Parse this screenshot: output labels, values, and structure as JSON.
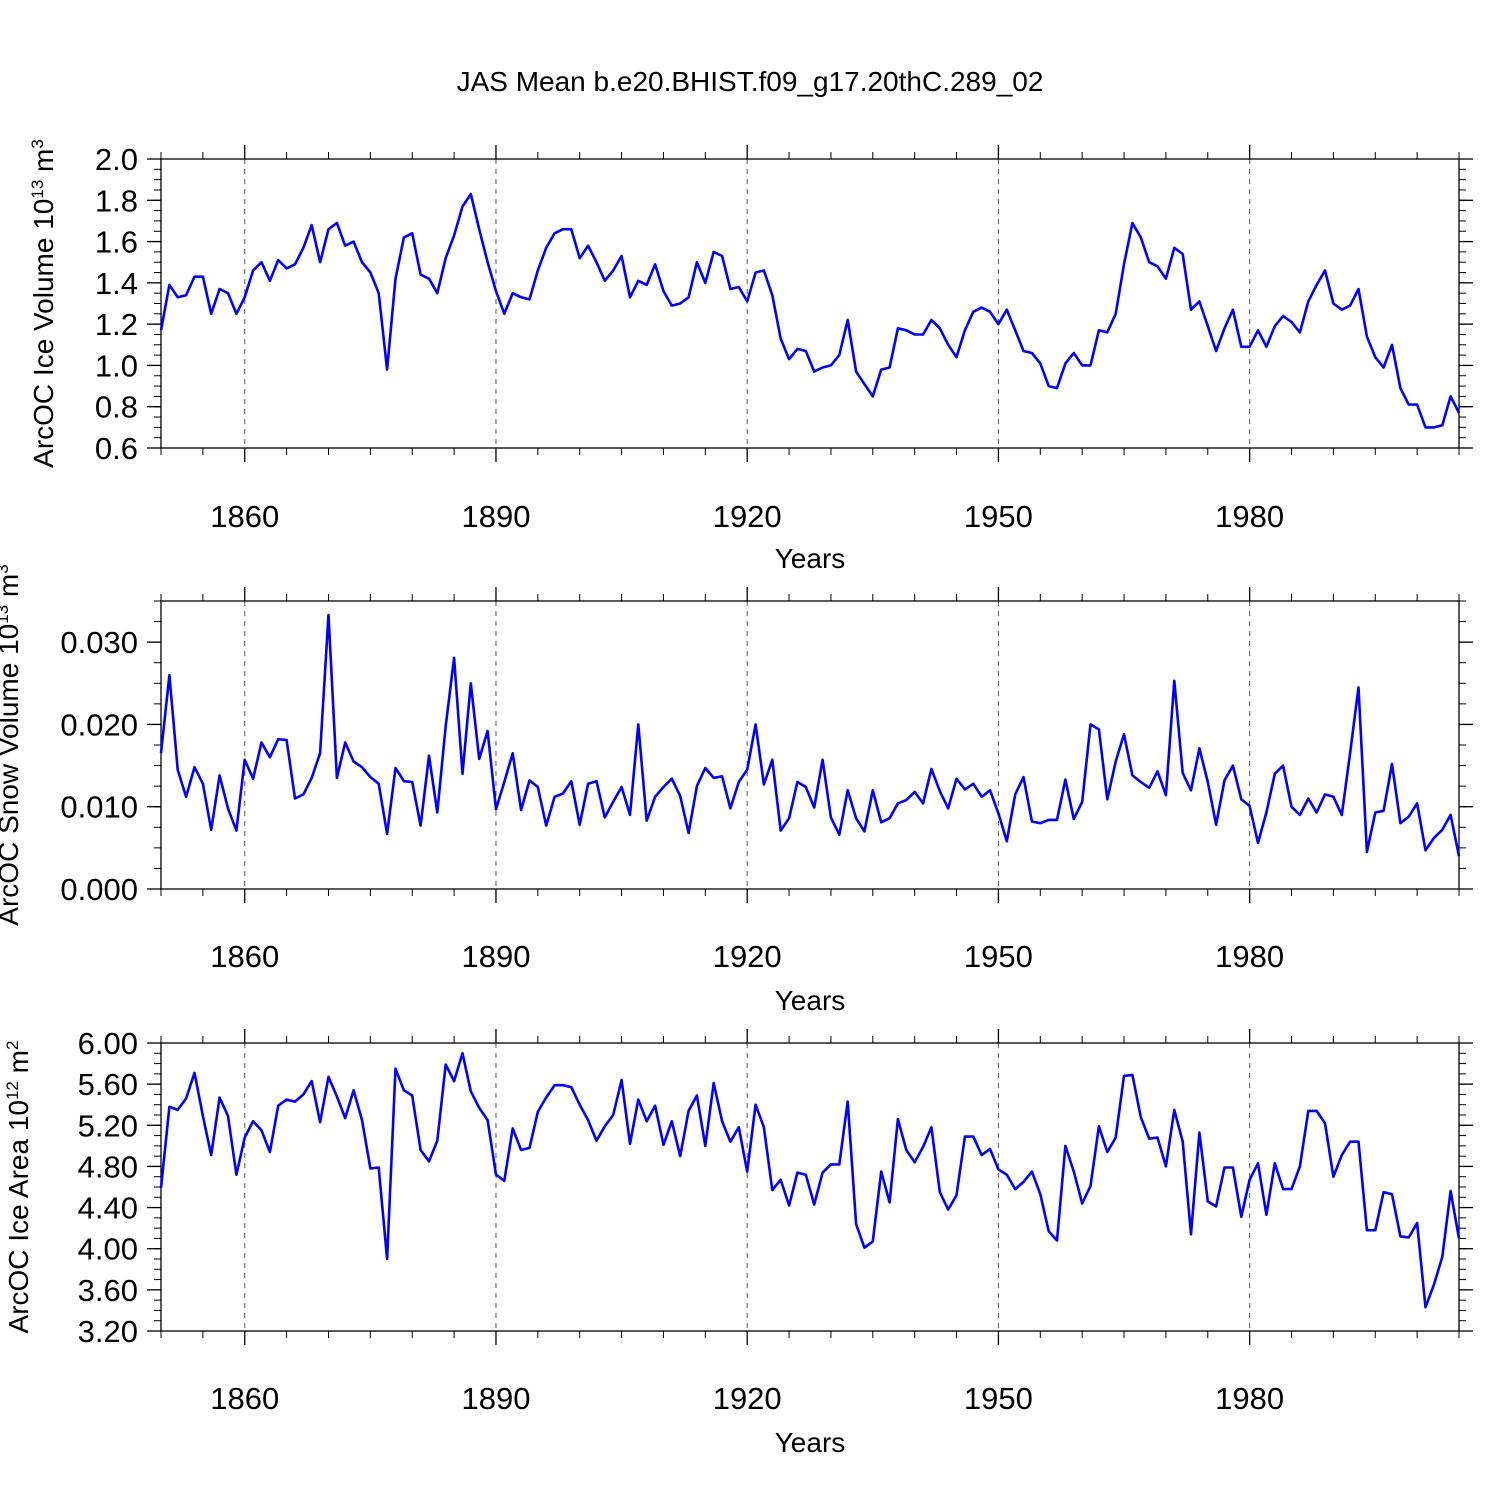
{
  "title": "JAS Mean b.e20.BHIST.f09_g17.20thC.289_02",
  "colors": {
    "line": "#0000ff",
    "axis": "#000000",
    "grid": "#555555"
  },
  "chart_data": [
    {
      "type": "line",
      "xlabel": "Years",
      "ylabel": {
        "base": "ArcOC Ice Volume 10",
        "exp": "13",
        "unit": " m",
        "unit_exp": "3"
      },
      "xlim": [
        1850,
        2005
      ],
      "ylim": [
        0.6,
        2.0
      ],
      "xticks": [
        1860,
        1890,
        1920,
        1950,
        1980
      ],
      "xtick_labels": [
        "1860",
        "1890",
        "1920",
        "1950",
        "1980"
      ],
      "yticks": [
        0.6,
        0.8,
        1.0,
        1.2,
        1.4,
        1.6,
        1.8,
        2.0
      ],
      "ytick_labels": [
        "0.6",
        "0.8",
        "1.0",
        "1.2",
        "1.4",
        "1.6",
        "1.8",
        "2.0"
      ],
      "yminor_step": 0.05,
      "x_start": 1850,
      "values": [
        1.17,
        1.39,
        1.33,
        1.34,
        1.43,
        1.43,
        1.25,
        1.37,
        1.35,
        1.25,
        1.33,
        1.46,
        1.5,
        1.41,
        1.51,
        1.47,
        1.49,
        1.57,
        1.68,
        1.5,
        1.66,
        1.69,
        1.58,
        1.6,
        1.5,
        1.45,
        1.35,
        0.98,
        1.42,
        1.62,
        1.64,
        1.44,
        1.42,
        1.35,
        1.52,
        1.63,
        1.77,
        1.83,
        1.66,
        1.5,
        1.36,
        1.25,
        1.35,
        1.33,
        1.32,
        1.46,
        1.57,
        1.64,
        1.66,
        1.66,
        1.52,
        1.58,
        1.5,
        1.41,
        1.46,
        1.53,
        1.33,
        1.41,
        1.39,
        1.49,
        1.36,
        1.29,
        1.3,
        1.33,
        1.5,
        1.4,
        1.55,
        1.53,
        1.37,
        1.38,
        1.31,
        1.45,
        1.46,
        1.34,
        1.13,
        1.03,
        1.08,
        1.07,
        0.97,
        0.99,
        1.0,
        1.05,
        1.22,
        0.97,
        0.91,
        0.85,
        0.98,
        0.99,
        1.18,
        1.17,
        1.15,
        1.15,
        1.22,
        1.18,
        1.1,
        1.04,
        1.17,
        1.26,
        1.28,
        1.26,
        1.2,
        1.27,
        1.17,
        1.07,
        1.06,
        1.01,
        0.9,
        0.89,
        1.01,
        1.06,
        1.0,
        1.0,
        1.17,
        1.16,
        1.25,
        1.49,
        1.69,
        1.62,
        1.5,
        1.48,
        1.42,
        1.57,
        1.54,
        1.27,
        1.31,
        1.19,
        1.07,
        1.18,
        1.27,
        1.09,
        1.09,
        1.17,
        1.09,
        1.19,
        1.24,
        1.21,
        1.16,
        1.31,
        1.39,
        1.46,
        1.3,
        1.27,
        1.29,
        1.37,
        1.14,
        1.04,
        0.99,
        1.1,
        0.89,
        0.81,
        0.81,
        0.7,
        0.7,
        0.71,
        0.85,
        0.77
      ]
    },
    {
      "type": "line",
      "xlabel": "Years",
      "ylabel": {
        "base": "ArcOC Snow Volume 10",
        "exp": "13",
        "unit": " m",
        "unit_exp": "3"
      },
      "xlim": [
        1850,
        2005
      ],
      "ylim": [
        0.0,
        0.035
      ],
      "xticks": [
        1860,
        1890,
        1920,
        1950,
        1980
      ],
      "xtick_labels": [
        "1860",
        "1890",
        "1920",
        "1950",
        "1980"
      ],
      "yticks": [
        0.0,
        0.01,
        0.02,
        0.03
      ],
      "ytick_labels": [
        "0.000",
        "0.010",
        "0.020",
        "0.030"
      ],
      "yminor_step": 0.0025,
      "x_start": 1850,
      "values": [
        0.0165,
        0.026,
        0.0145,
        0.0112,
        0.0148,
        0.0128,
        0.0072,
        0.0138,
        0.0098,
        0.0071,
        0.0157,
        0.0134,
        0.0178,
        0.016,
        0.0182,
        0.0181,
        0.011,
        0.0115,
        0.0135,
        0.0165,
        0.0333,
        0.0135,
        0.0178,
        0.0155,
        0.0148,
        0.0136,
        0.0128,
        0.0067,
        0.0147,
        0.0131,
        0.013,
        0.0077,
        0.0162,
        0.0093,
        0.0198,
        0.0281,
        0.014,
        0.025,
        0.0158,
        0.0192,
        0.0097,
        0.013,
        0.0165,
        0.0096,
        0.0132,
        0.0124,
        0.0077,
        0.0112,
        0.0116,
        0.0131,
        0.0078,
        0.0128,
        0.0131,
        0.0087,
        0.0106,
        0.0124,
        0.009,
        0.02,
        0.0083,
        0.0112,
        0.0124,
        0.0134,
        0.0113,
        0.0068,
        0.0125,
        0.0147,
        0.0135,
        0.0137,
        0.0098,
        0.013,
        0.0145,
        0.02,
        0.0127,
        0.0157,
        0.0071,
        0.0086,
        0.013,
        0.0124,
        0.0099,
        0.0157,
        0.0087,
        0.0066,
        0.012,
        0.0086,
        0.007,
        0.012,
        0.0081,
        0.0086,
        0.0104,
        0.0108,
        0.0118,
        0.0104,
        0.0146,
        0.0119,
        0.0098,
        0.0134,
        0.0121,
        0.0128,
        0.0112,
        0.012,
        0.0092,
        0.0058,
        0.0115,
        0.0136,
        0.0082,
        0.008,
        0.0084,
        0.0084,
        0.0133,
        0.0085,
        0.0106,
        0.02,
        0.0194,
        0.0109,
        0.0155,
        0.0188,
        0.0138,
        0.013,
        0.0123,
        0.0143,
        0.0114,
        0.0253,
        0.0141,
        0.012,
        0.0171,
        0.013,
        0.0078,
        0.0132,
        0.015,
        0.0109,
        0.0101,
        0.0056,
        0.0093,
        0.014,
        0.015,
        0.01,
        0.009,
        0.011,
        0.0093,
        0.0115,
        0.0112,
        0.009,
        0.0165,
        0.0245,
        0.0045,
        0.0093,
        0.0095,
        0.0152,
        0.008,
        0.0088,
        0.0104,
        0.0047,
        0.0062,
        0.0072,
        0.009,
        0.004
      ]
    },
    {
      "type": "line",
      "xlabel": "Years",
      "ylabel": {
        "base": "ArcOC Ice Area 10",
        "exp": "12",
        "unit": " m",
        "unit_exp": "2"
      },
      "xlim": [
        1850,
        2005
      ],
      "ylim": [
        3.2,
        6.0
      ],
      "xticks": [
        1860,
        1890,
        1920,
        1950,
        1980
      ],
      "xtick_labels": [
        "1860",
        "1890",
        "1920",
        "1950",
        "1980"
      ],
      "yticks": [
        3.2,
        3.6,
        4.0,
        4.4,
        4.8,
        5.2,
        5.6,
        6.0
      ],
      "ytick_labels": [
        "3.20",
        "3.60",
        "4.00",
        "4.40",
        "4.80",
        "5.20",
        "5.60",
        "6.00"
      ],
      "yminor_step": 0.1,
      "x_start": 1850,
      "values": [
        4.59,
        5.38,
        5.35,
        5.46,
        5.71,
        5.29,
        4.91,
        5.47,
        5.29,
        4.72,
        5.08,
        5.24,
        5.15,
        4.94,
        5.39,
        5.45,
        5.43,
        5.5,
        5.63,
        5.23,
        5.67,
        5.48,
        5.27,
        5.54,
        5.25,
        4.78,
        4.79,
        3.9,
        5.75,
        5.54,
        5.49,
        4.96,
        4.85,
        5.05,
        5.79,
        5.63,
        5.9,
        5.53,
        5.37,
        5.25,
        4.72,
        4.66,
        5.17,
        4.96,
        4.98,
        5.33,
        5.47,
        5.59,
        5.59,
        5.57,
        5.4,
        5.25,
        5.05,
        5.19,
        5.3,
        5.64,
        5.02,
        5.45,
        5.24,
        5.39,
        5.01,
        5.24,
        4.9,
        5.34,
        5.49,
        5.0,
        5.61,
        5.24,
        5.04,
        5.18,
        4.75,
        5.4,
        5.18,
        4.57,
        4.67,
        4.42,
        4.74,
        4.72,
        4.43,
        4.74,
        4.82,
        4.82,
        5.43,
        4.24,
        4.01,
        4.07,
        4.75,
        4.45,
        5.26,
        4.96,
        4.84,
        4.99,
        5.18,
        4.55,
        4.38,
        4.52,
        5.09,
        5.09,
        4.91,
        4.97,
        4.77,
        4.72,
        4.58,
        4.65,
        4.75,
        4.53,
        4.17,
        4.08,
        5.0,
        4.75,
        4.44,
        4.61,
        5.19,
        4.94,
        5.08,
        5.68,
        5.69,
        5.28,
        5.07,
        5.08,
        4.8,
        5.35,
        5.04,
        4.14,
        5.13,
        4.46,
        4.41,
        4.79,
        4.79,
        4.31,
        4.67,
        4.83,
        4.33,
        4.83,
        4.58,
        4.58,
        4.8,
        5.34,
        5.34,
        5.22,
        4.7,
        4.91,
        5.04,
        5.04,
        4.18,
        4.18,
        4.55,
        4.53,
        4.12,
        4.11,
        4.25,
        3.43,
        3.65,
        3.92,
        4.56,
        4.1
      ]
    }
  ]
}
